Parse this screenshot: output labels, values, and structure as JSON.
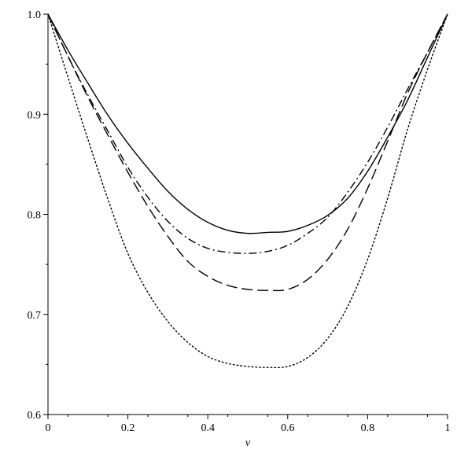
{
  "chart_data": {
    "type": "line",
    "title": "",
    "xlabel": "v",
    "ylabel": "",
    "xlim": [
      0,
      1
    ],
    "ylim": [
      0.6,
      1.0
    ],
    "grid": false,
    "legend": "none",
    "x_ticks": [
      "0",
      "0.2",
      "0.4",
      "0.6",
      "0.8",
      "1"
    ],
    "y_ticks": [
      "0.6",
      "0.7",
      "0.8",
      "0.9",
      "1.0"
    ],
    "x": [
      0,
      0.05,
      0.1,
      0.15,
      0.2,
      0.25,
      0.3,
      0.35,
      0.4,
      0.45,
      0.5,
      0.55,
      0.6,
      0.65,
      0.7,
      0.75,
      0.8,
      0.85,
      0.9,
      0.95,
      1
    ],
    "series": [
      {
        "style": "solid",
        "color": "#000000",
        "values": [
          1.0,
          0.964,
          0.931,
          0.899,
          0.871,
          0.846,
          0.823,
          0.805,
          0.792,
          0.784,
          0.781,
          0.782,
          0.783,
          0.789,
          0.799,
          0.816,
          0.843,
          0.877,
          0.914,
          0.957,
          1.0
        ]
      },
      {
        "style": "dashdot",
        "color": "#000000",
        "values": [
          1.0,
          0.958,
          0.919,
          0.883,
          0.847,
          0.817,
          0.793,
          0.776,
          0.766,
          0.762,
          0.761,
          0.763,
          0.769,
          0.781,
          0.797,
          0.822,
          0.852,
          0.887,
          0.925,
          0.962,
          1.0
        ]
      },
      {
        "style": "dashed",
        "color": "#000000",
        "values": [
          1.0,
          0.958,
          0.917,
          0.879,
          0.842,
          0.808,
          0.778,
          0.753,
          0.738,
          0.729,
          0.725,
          0.724,
          0.725,
          0.735,
          0.755,
          0.785,
          0.826,
          0.873,
          0.921,
          0.962,
          1.0
        ]
      },
      {
        "style": "dotted",
        "color": "#000000",
        "values": [
          1.0,
          0.937,
          0.875,
          0.815,
          0.761,
          0.722,
          0.693,
          0.672,
          0.658,
          0.651,
          0.648,
          0.647,
          0.648,
          0.657,
          0.676,
          0.708,
          0.755,
          0.816,
          0.885,
          0.945,
          1.0
        ]
      }
    ]
  }
}
